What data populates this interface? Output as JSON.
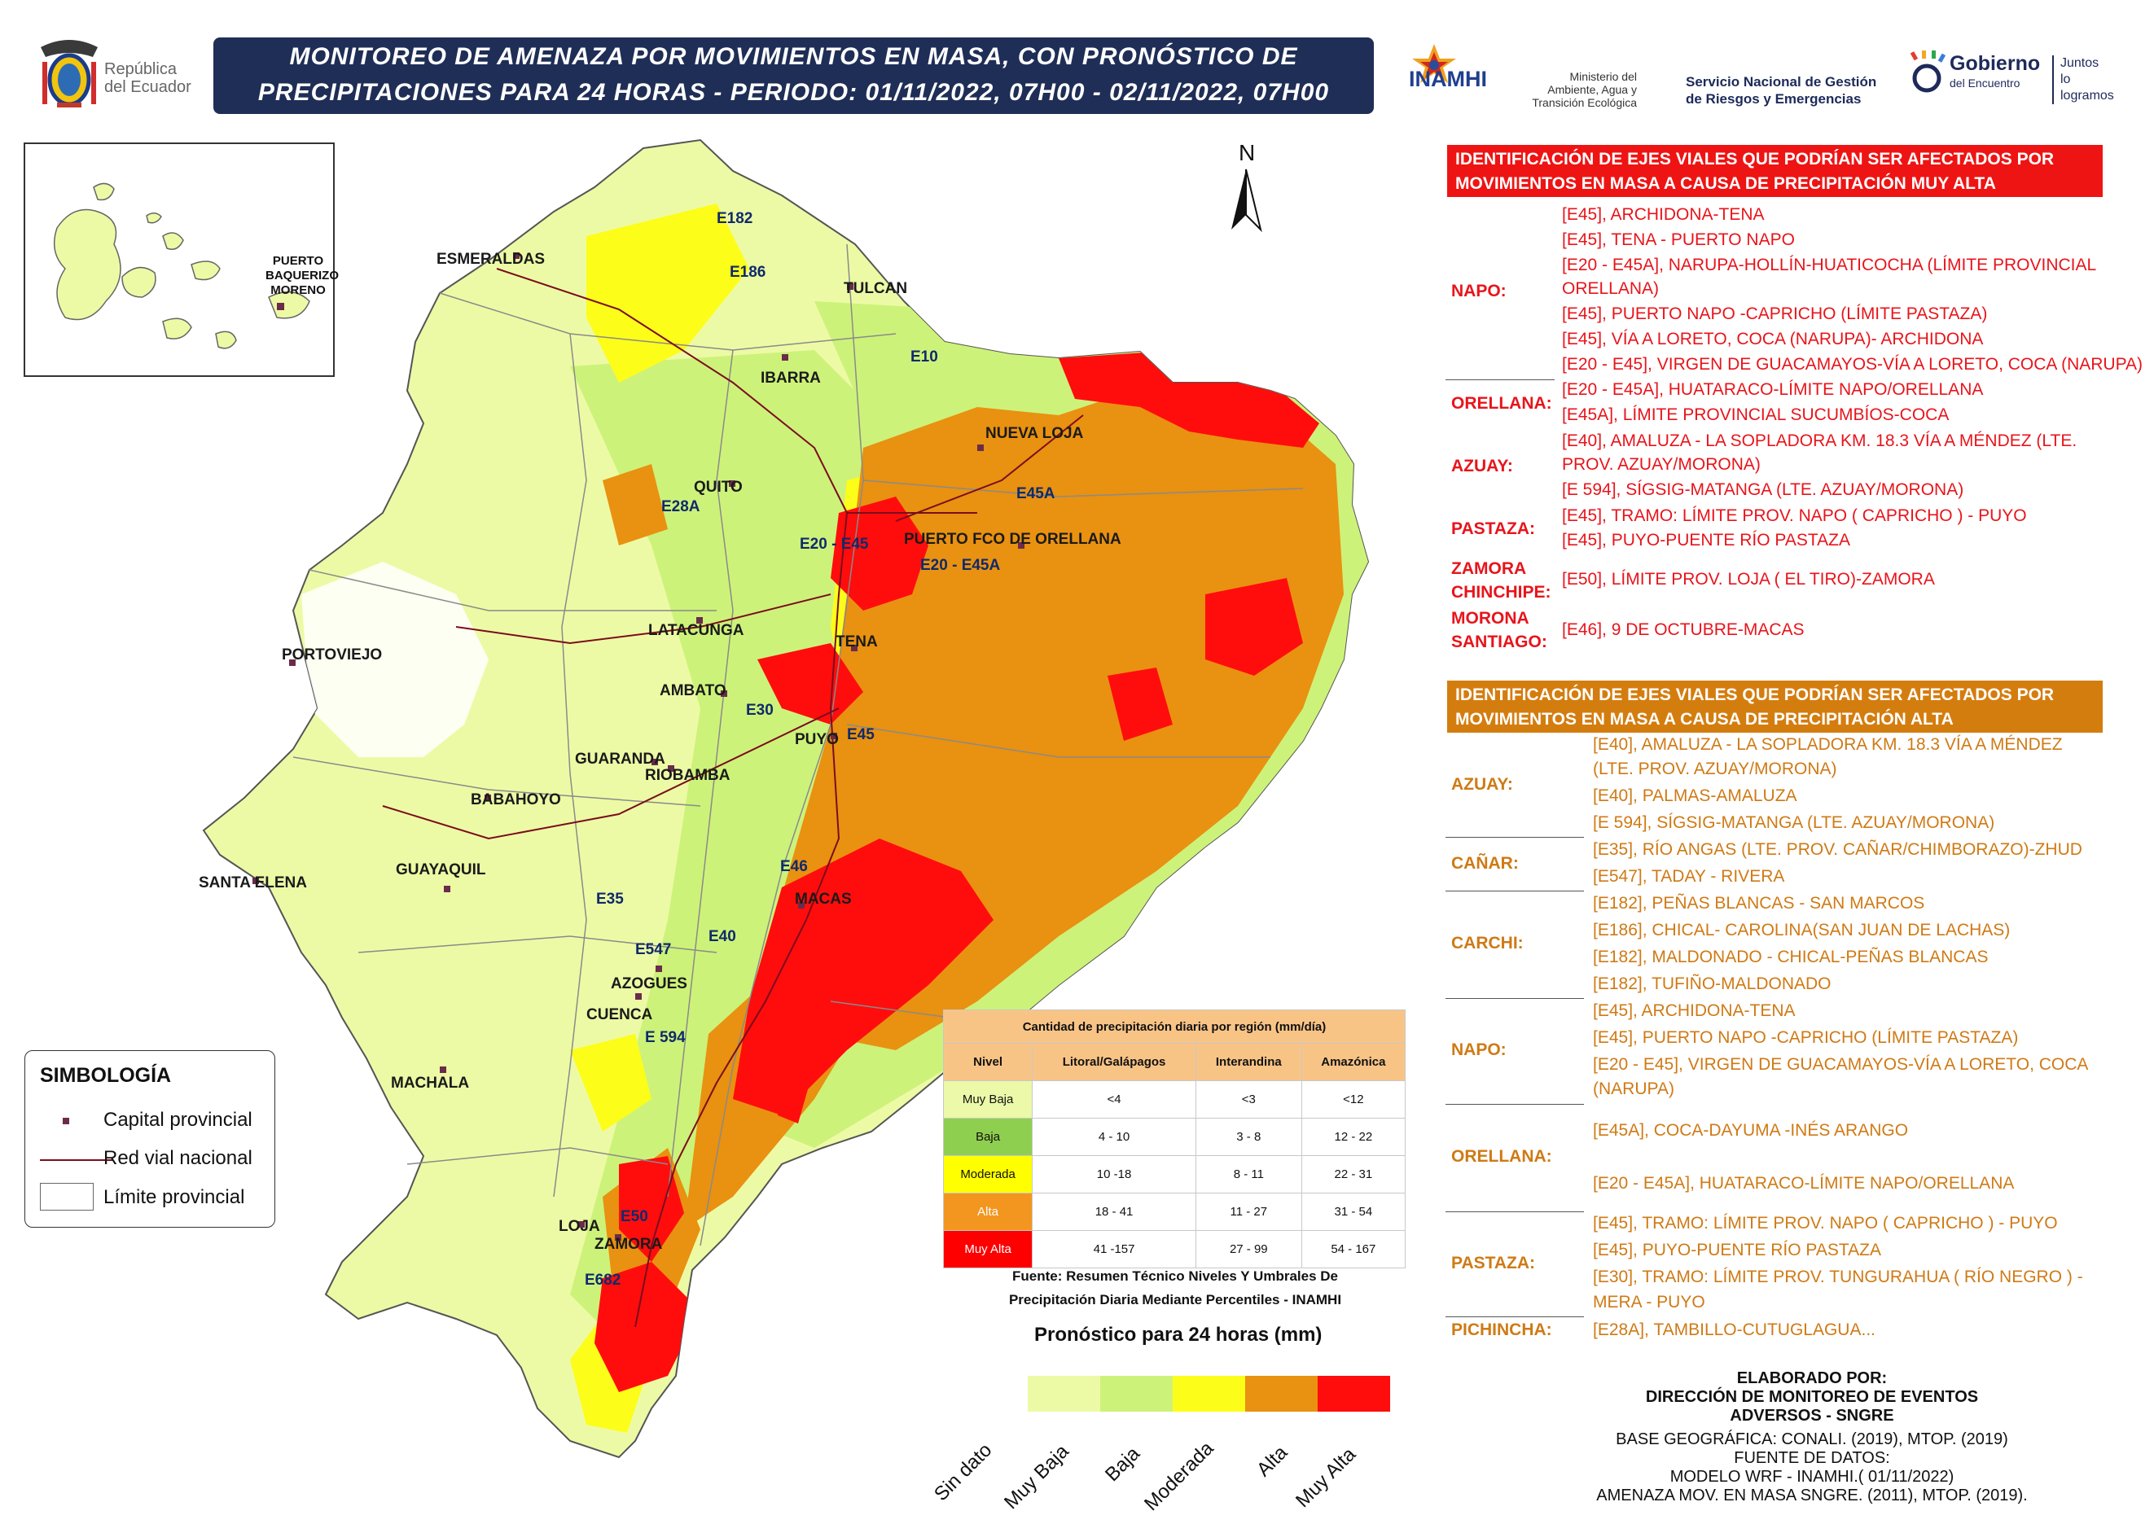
{
  "header": {
    "title_line1": "MONITOREO DE AMENAZA POR MOVIMIENTOS EN MASA, CON PRONÓSTICO DE",
    "title_line2": "PRECIPITACIONES PARA 24 HORAS - PERIODO: 01/11/2022, 07H00 - 02/11/2022, 07H00",
    "logo_republica_line1": "República",
    "logo_republica_line2": "del Ecuador",
    "logo_inamhi": "INAMHI",
    "logo_ministerio_line1": "Ministerio del",
    "logo_ministerio_line2": "Ambiente, Agua y",
    "logo_ministerio_line3": "Transición Ecológica",
    "logo_sngre_line1": "Servicio Nacional de Gestión",
    "logo_sngre_line2": "de Riesgos y Emergencias",
    "logo_gobierno_line1": "Gobierno",
    "logo_gobierno_line2": "del Encuentro",
    "logo_juntos_line1": "Juntos",
    "logo_juntos_line2": "lo logramos"
  },
  "map": {
    "north": "N",
    "inset_city_line1": "PUERTO",
    "inset_city_line2": "BAQUERIZO",
    "inset_city_line3": "MORENO",
    "cities": [
      "ESMERALDAS",
      "TULCAN",
      "IBARRA",
      "NUEVA LOJA",
      "QUITO",
      "PUERTO FCO DE ORELLANA",
      "LATACUNGA",
      "TENA",
      "PORTOVIEJO",
      "AMBATO",
      "PUYO",
      "GUARANDA",
      "RIOBAMBA",
      "BABAHOYO",
      "SANTA ELENA",
      "GUAYAQUIL",
      "MACAS",
      "AZOGUES",
      "CUENCA",
      "MACHALA",
      "LOJA",
      "ZAMORA"
    ],
    "roads": [
      "E182",
      "E186",
      "E10",
      "E45A",
      "E28A",
      "E20 - E45",
      "E20 - E45A",
      "E30",
      "E45",
      "E46",
      "E35",
      "E547",
      "E40",
      "E 594",
      "E50",
      "E682"
    ]
  },
  "symbology": {
    "title": "SIMBOLOGÍA",
    "capital": "Capital provincial",
    "road": "Red vial nacional",
    "boundary": "Límite provincial"
  },
  "precip_table": {
    "title": "Cantidad de precipitación diaria por región (mm/día)",
    "headers": [
      "Nivel",
      "Litoral/Galápagos",
      "Interandina",
      "Amazónica"
    ],
    "rows": [
      {
        "level": "Muy Baja",
        "color": "#ebf9a8",
        "litoral": "<4",
        "interandina": "<3",
        "amazonica": "<12"
      },
      {
        "level": "Baja",
        "color": "#8fcf4f",
        "litoral": "4 - 10",
        "interandina": "3 - 8",
        "amazonica": "12 - 22"
      },
      {
        "level": "Moderada",
        "color": "#ffff00",
        "litoral": "10 -18",
        "interandina": "8 - 11",
        "amazonica": "22 - 31"
      },
      {
        "level": "Alta",
        "color": "#f3961f",
        "litoral": "18 - 41",
        "interandina": "11 - 27",
        "amazonica": "31 - 54"
      },
      {
        "level": "Muy Alta",
        "color": "#ff0000",
        "litoral": "41 -157",
        "interandina": "27 - 99",
        "amazonica": "54 - 167"
      }
    ],
    "source_line1": "Fuente: Resumen Técnico Niveles Y Umbrales De",
    "source_line2": "Precipitación Diaria Mediante Percentiles - INAMHI"
  },
  "legend": {
    "title": "Pronóstico para 24 horas (mm)",
    "items": [
      {
        "label": "Sin dato",
        "color": null
      },
      {
        "label": "Muy Baja",
        "color": "#edfaa5"
      },
      {
        "label": "Baja",
        "color": "#cdf27a"
      },
      {
        "label": "Moderada",
        "color": "#fdfd1a"
      },
      {
        "label": "Alta",
        "color": "#e99110"
      },
      {
        "label": "Muy Alta",
        "color": "#ff0d0d"
      }
    ]
  },
  "panel_muy_alta": {
    "banner_line1": "IDENTIFICACIÓN DE EJES VIALES QUE PODRÍAN SER AFECTADOS POR",
    "banner_line2": "MOVIMIENTOS EN MASA A CAUSA DE  PRECIPITACIÓN MUY ALTA",
    "napo": "NAPO:",
    "napo_items": [
      "[E45], ARCHIDONA-TENA",
      "[E45], TENA - PUERTO NAPO",
      "[E20 - E45A], NARUPA-HOLLÍN-HUATICOCHA (LÍMITE PROVINCIAL",
      "ORELLANA)",
      "[E45], PUERTO NAPO -CAPRICHO (LÍMITE PASTAZA)",
      "[E45], VÍA A LORETO, COCA (NARUPA)- ARCHIDONA",
      "[E20 - E45], VIRGEN DE GUACAMAYOS-VÍA A LORETO, COCA (NARUPA)"
    ],
    "orellana": "ORELLANA:",
    "orellana_items": [
      "[E20 - E45A], HUATARACO-LÍMITE NAPO/ORELLANA",
      "[E45A], LÍMITE PROVINCIAL SUCUMBÍOS-COCA"
    ],
    "azuay": "AZUAY:",
    "azuay_items": [
      "[E40], AMALUZA - LA SOPLADORA KM. 18.3 VÍA A MÉNDEZ (LTE.",
      "PROV. AZUAY/MORONA)",
      "[E 594], SÍGSIG-MATANGA (LTE. AZUAY/MORONA)"
    ],
    "pastaza": "PASTAZA:",
    "pastaza_items": [
      "[E45], TRAMO: LÍMITE PROV. NAPO ( CAPRICHO ) - PUYO",
      "[E45], PUYO-PUENTE RÍO PASTAZA"
    ],
    "zamora_line1": "ZAMORA",
    "zamora_line2": "CHINCHIPE:",
    "zamora_items": [
      "[E50], LÍMITE PROV. LOJA ( EL TIRO)-ZAMORA"
    ],
    "morona_line1": "MORONA",
    "morona_line2": "SANTIAGO:",
    "morona_items": [
      "[E46], 9 DE OCTUBRE-MACAS"
    ]
  },
  "panel_alta": {
    "banner_line1": "IDENTIFICACIÓN DE EJES VIALES QUE PODRÍAN SER AFECTADOS POR",
    "banner_line2": "MOVIMIENTOS EN MASA A CAUSA DE  PRECIPITACIÓN ALTA",
    "azuay": "AZUAY:",
    "azuay_items": [
      "[E40], AMALUZA - LA SOPLADORA KM. 18.3 VÍA A MÉNDEZ",
      "(LTE. PROV. AZUAY/MORONA)",
      "[E40], PALMAS-AMALUZA",
      "[E 594], SÍGSIG-MATANGA (LTE. AZUAY/MORONA)"
    ],
    "canar": "CAÑAR:",
    "canar_items": [
      "[E35], RÍO ANGAS (LTE. PROV. CAÑAR/CHIMBORAZO)-ZHUD",
      "[E547], TADAY - RIVERA"
    ],
    "carchi": "CARCHI:",
    "carchi_items": [
      "[E182], PEÑAS BLANCAS - SAN MARCOS",
      "[E186], CHICAL- CAROLINA(SAN JUAN DE LACHAS)",
      "[E182], MALDONADO - CHICAL-PEÑAS BLANCAS",
      "[E182], TUFIÑO-MALDONADO"
    ],
    "napo": "NAPO:",
    "napo_items": [
      "[E45], ARCHIDONA-TENA",
      "[E45], PUERTO NAPO -CAPRICHO (LÍMITE PASTAZA)",
      "[E20 - E45], VIRGEN DE GUACAMAYOS-VÍA A LORETO, COCA",
      "(NARUPA)"
    ],
    "orellana": "ORELLANA:",
    "orellana_items": [
      "[E45A], COCA-DAYUMA -INÉS ARANGO",
      "[E20 - E45A], HUATARACO-LÍMITE NAPO/ORELLANA"
    ],
    "pastaza": "PASTAZA:",
    "pastaza_items": [
      "[E45], TRAMO: LÍMITE PROV. NAPO ( CAPRICHO ) - PUYO",
      "[E45], PUYO-PUENTE RÍO PASTAZA",
      "[E30], TRAMO: LÍMITE PROV. TUNGURAHUA ( RÍO NEGRO ) -",
      "MERA - PUYO"
    ],
    "pichincha": "PICHINCHA:",
    "pichincha_items": [
      "[E28A], TAMBILLO-CUTUGLAGUA..."
    ]
  },
  "credits": {
    "line1": "ELABORADO POR:",
    "line2": "DIRECCIÓN DE MONITOREO DE EVENTOS",
    "line3": "ADVERSOS - SNGRE",
    "line4": "BASE GEOGRÁFICA: CONALI. (2019), MTOP. (2019)",
    "line5": "FUENTE DE DATOS:",
    "line6": "MODELO WRF - INAMHI.( 01/11/2022)",
    "line7": "AMENAZA MOV. EN MASA SNGRE. (2011), MTOP. (2019)."
  }
}
